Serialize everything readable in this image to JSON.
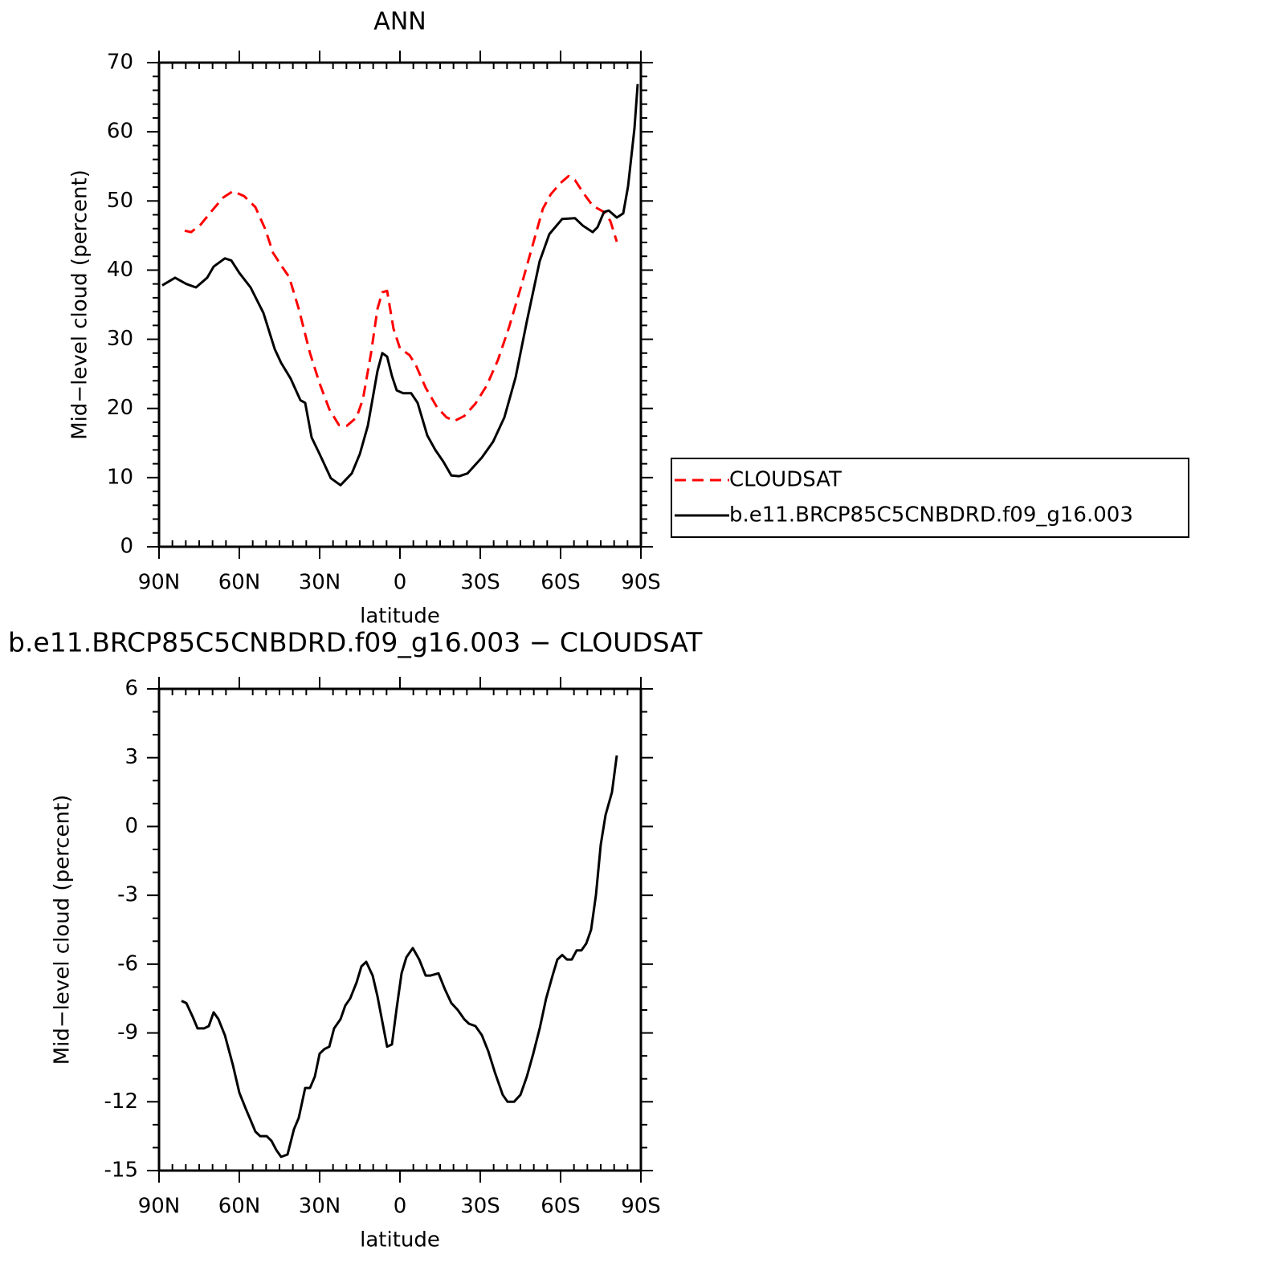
{
  "chart_data": [
    {
      "type": "line",
      "title": "ANN",
      "xlabel": "latitude",
      "ylabel": "Mid−level cloud (percent)",
      "xlim": [
        90,
        -90
      ],
      "xticks": [
        {
          "value": 90,
          "label": "90N"
        },
        {
          "value": 60,
          "label": "60N"
        },
        {
          "value": 30,
          "label": "30N"
        },
        0,
        {
          "value": -30,
          "label": "30S"
        },
        {
          "value": -60,
          "label": "60S"
        },
        {
          "value": -90,
          "label": "90S"
        }
      ],
      "ylim": [
        0,
        70
      ],
      "yticks": [
        0,
        10,
        20,
        30,
        40,
        50,
        60,
        70
      ],
      "legend": "right",
      "series": [
        {
          "name": "CLOUDSAT",
          "color": "#ff0000",
          "dash": "dashed",
          "x": [
            80.4,
            78,
            74.4,
            70.2,
            66,
            62.4,
            58.2,
            54,
            50.4,
            47.4,
            44.4,
            41.4,
            37.8,
            33.6,
            30,
            26.4,
            22.8,
            19.8,
            16.2,
            13.8,
            10.8,
            8.4,
            6.6,
            4.8,
            2.4,
            0,
            -3.6,
            -6,
            -9.6,
            -13.8,
            -17.4,
            -20.4,
            -24,
            -28.2,
            -32.4,
            -36.6,
            -40.8,
            -45,
            -49.2,
            -53.4,
            -56.4,
            -60,
            -63,
            -65.4,
            -68.4,
            -72,
            -76.2,
            -78.6,
            -81
          ],
          "values": [
            45.7,
            45.5,
            46.6,
            48.6,
            50.5,
            51.4,
            50.7,
            49.1,
            46.0,
            42.5,
            40.7,
            39.0,
            34.4,
            28.0,
            23.6,
            19.9,
            17.6,
            17.5,
            18.7,
            21.4,
            28.0,
            34.4,
            36.8,
            37.0,
            31.5,
            28.7,
            27.7,
            26.2,
            23.0,
            20.2,
            18.7,
            18.2,
            18.9,
            20.7,
            23.3,
            27.0,
            31.8,
            37.3,
            43.1,
            48.9,
            51.0,
            52.6,
            53.6,
            53.0,
            51.2,
            49.3,
            48.4,
            47.1,
            44.1
          ]
        },
        {
          "name": "b.e11.BRCP85C5CNBDRD.f09_g16.003",
          "color": "#000000",
          "dash": "solid",
          "x": [
            88.8,
            84,
            79.8,
            76.2,
            72,
            69.6,
            65.4,
            63,
            60,
            55.8,
            51,
            46.8,
            44.4,
            40.8,
            37.2,
            35.4,
            33,
            30,
            25.8,
            22.2,
            18,
            15,
            12,
            8.4,
            6.6,
            4.8,
            3,
            1.2,
            -1.2,
            -4.2,
            -6.6,
            -10.2,
            -13.2,
            -16.2,
            -19.2,
            -22.2,
            -25.2,
            -30.6,
            -34.8,
            -39,
            -43.2,
            -47.4,
            -52.2,
            -55.8,
            -60.6,
            -65.4,
            -68.4,
            -72,
            -73.8,
            -76.2,
            -78,
            -81,
            -83.4,
            -85.2,
            -87.6,
            -88.8
          ],
          "values": [
            37.8,
            38.9,
            38.0,
            37.5,
            38.9,
            40.5,
            41.7,
            41.4,
            39.6,
            37.5,
            33.8,
            28.6,
            26.6,
            24.3,
            21.2,
            20.8,
            15.8,
            13.4,
            9.9,
            8.9,
            10.6,
            13.4,
            17.5,
            25.4,
            28.0,
            27.5,
            24.7,
            22.6,
            22.2,
            22.2,
            20.8,
            16.1,
            14.0,
            12.3,
            10.3,
            10.2,
            10.6,
            12.9,
            15.2,
            18.7,
            24.5,
            32.6,
            41.3,
            45.2,
            47.4,
            47.5,
            46.4,
            45.5,
            46.2,
            48.4,
            48.6,
            47.6,
            48.2,
            52.1,
            60.5,
            66.9
          ]
        }
      ]
    },
    {
      "type": "line",
      "title": "b.e11.BRCP85C5CNBDRD.f09_g16.003 − CLOUDSAT",
      "xlabel": "latitude",
      "ylabel": "Mid−level cloud (percent)",
      "xlim": [
        90,
        -90
      ],
      "xticks": [
        {
          "value": 90,
          "label": "90N"
        },
        {
          "value": 60,
          "label": "60N"
        },
        {
          "value": 30,
          "label": "30N"
        },
        0,
        {
          "value": -30,
          "label": "30S"
        },
        {
          "value": -60,
          "label": "60S"
        },
        {
          "value": -90,
          "label": "90S"
        }
      ],
      "ylim": [
        -15,
        6
      ],
      "yticks": [
        -15,
        -12,
        -9,
        -6,
        -3,
        0,
        3,
        6
      ],
      "series": [
        {
          "color": "#000000",
          "dash": "solid",
          "x": [
            81.6,
            79.8,
            77.4,
            75.6,
            73.2,
            71.4,
            69.6,
            67.8,
            65.4,
            62.4,
            60,
            57.6,
            55.8,
            54,
            52.2,
            49.8,
            48,
            46.2,
            44.4,
            42,
            39.6,
            37.8,
            35.4,
            33.6,
            31.8,
            30,
            28.2,
            26.4,
            24.6,
            22.2,
            20.4,
            18.6,
            16.2,
            14.4,
            12.6,
            10.2,
            8.4,
            6.6,
            4.8,
            3,
            1.2,
            -0.6,
            -2.4,
            -4.8,
            -7.2,
            -9.6,
            -11.4,
            -14.4,
            -16.8,
            -19.2,
            -21.6,
            -24,
            -25.8,
            -28.2,
            -30.6,
            -33,
            -35.4,
            -38.4,
            -40.2,
            -42.6,
            -45,
            -47.4,
            -49.8,
            -52.2,
            -54.6,
            -57,
            -58.8,
            -60.6,
            -62.4,
            -64.2,
            -66,
            -67.8,
            -69.6,
            -71.4,
            -73.2,
            -75,
            -76.8,
            -79.2,
            -81
          ],
          "values": [
            -7.6,
            -7.7,
            -8.3,
            -8.8,
            -8.8,
            -8.7,
            -8.1,
            -8.4,
            -9.1,
            -10.4,
            -11.6,
            -12.3,
            -12.8,
            -13.3,
            -13.5,
            -13.5,
            -13.7,
            -14.1,
            -14.4,
            -14.3,
            -13.2,
            -12.7,
            -11.4,
            -11.4,
            -10.9,
            -9.9,
            -9.7,
            -9.6,
            -8.8,
            -8.4,
            -7.8,
            -7.5,
            -6.8,
            -6.1,
            -5.9,
            -6.5,
            -7.4,
            -8.5,
            -9.6,
            -9.5,
            -7.9,
            -6.4,
            -5.7,
            -5.3,
            -5.8,
            -6.5,
            -6.5,
            -6.4,
            -7.1,
            -7.7,
            -8.0,
            -8.4,
            -8.6,
            -8.7,
            -9.1,
            -9.8,
            -10.7,
            -11.7,
            -12.0,
            -12.0,
            -11.7,
            -10.9,
            -9.9,
            -8.8,
            -7.5,
            -6.5,
            -5.8,
            -5.6,
            -5.8,
            -5.8,
            -5.4,
            -5.4,
            -5.1,
            -4.5,
            -3.0,
            -0.8,
            0.5,
            1.5,
            3.1
          ]
        }
      ]
    }
  ]
}
